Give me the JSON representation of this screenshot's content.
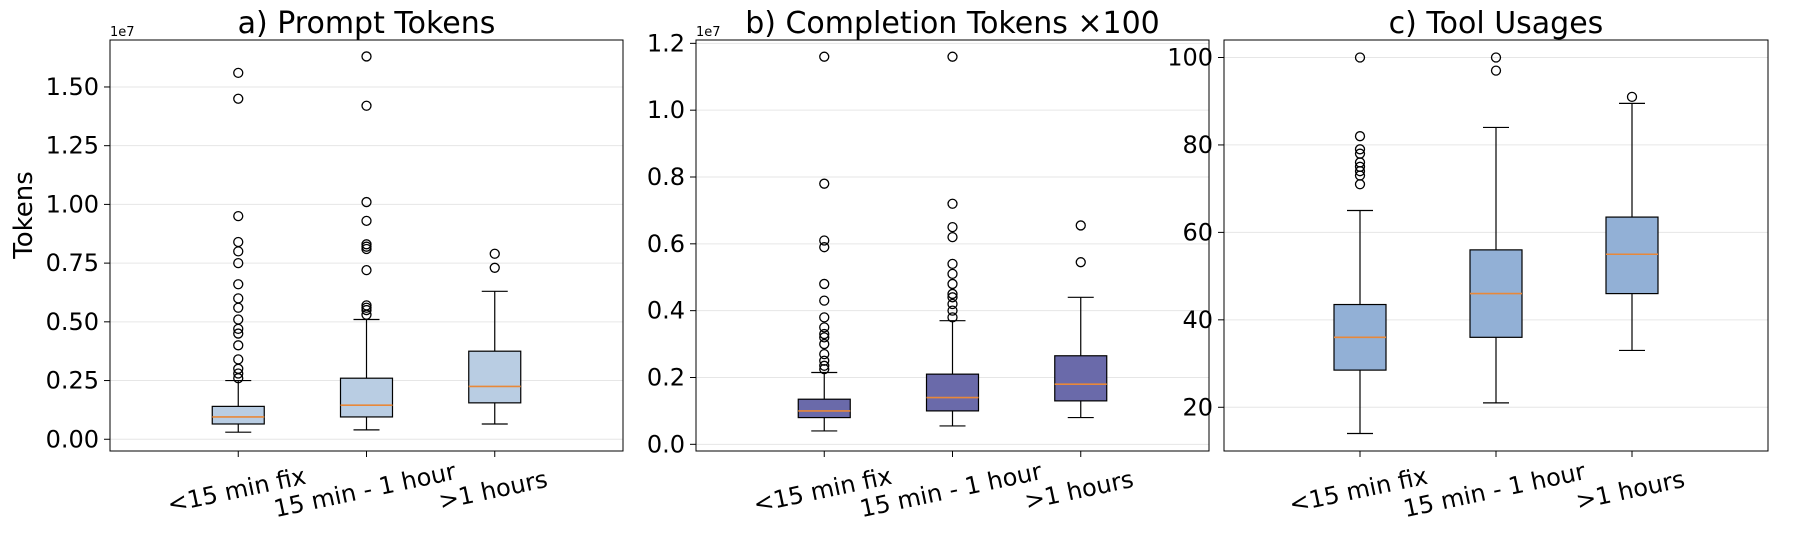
{
  "median_color": "#e8883a",
  "ylabel": "Tokens",
  "chart_data": [
    {
      "type": "box",
      "title": "a) Prompt Tokens",
      "ylabel": "Tokens",
      "multiplier": "1e7",
      "box_color": "#b9cde3",
      "categories": [
        "<15 min fix",
        "15 min - 1 hour",
        ">1 hours"
      ],
      "ylim": [
        -0.05,
        1.7
      ],
      "yticks": [
        0.0,
        0.25,
        0.5,
        0.75,
        1.0,
        1.25,
        1.5
      ],
      "ytick_labels": [
        "0.00",
        "0.25",
        "0.50",
        "0.75",
        "1.00",
        "1.25",
        "1.50"
      ],
      "boxes": [
        {
          "whislo": 0.03,
          "q1": 0.065,
          "med": 0.095,
          "q3": 0.14,
          "whishi": 0.25,
          "fliers": [
            0.26,
            0.28,
            0.3,
            0.34,
            0.4,
            0.45,
            0.47,
            0.51,
            0.56,
            0.6,
            0.66,
            0.75,
            0.8,
            0.84,
            0.95,
            1.45,
            1.56
          ]
        },
        {
          "whislo": 0.04,
          "q1": 0.095,
          "med": 0.145,
          "q3": 0.26,
          "whishi": 0.51,
          "fliers": [
            0.53,
            0.55,
            0.56,
            0.57,
            0.72,
            0.81,
            0.82,
            0.83,
            0.93,
            1.01,
            1.42,
            1.63
          ]
        },
        {
          "whislo": 0.065,
          "q1": 0.155,
          "med": 0.225,
          "q3": 0.375,
          "whishi": 0.63,
          "fliers": [
            0.73,
            0.79
          ]
        }
      ]
    },
    {
      "type": "box",
      "title": "b) Completion Tokens ×100",
      "ylabel": "",
      "multiplier": "1e7",
      "box_color": "#6a6aaa",
      "categories": [
        "<15 min fix",
        "15 min - 1 hour",
        ">1 hours"
      ],
      "ylim": [
        -0.02,
        1.21
      ],
      "yticks": [
        0.0,
        0.2,
        0.4,
        0.6,
        0.8,
        1.0,
        1.2
      ],
      "ytick_labels": [
        "0.0",
        "0.2",
        "0.4",
        "0.6",
        "0.8",
        "1.0",
        "1.2"
      ],
      "boxes": [
        {
          "whislo": 0.04,
          "q1": 0.08,
          "med": 0.1,
          "q3": 0.135,
          "whishi": 0.215,
          "fliers": [
            0.225,
            0.235,
            0.25,
            0.27,
            0.3,
            0.32,
            0.33,
            0.35,
            0.38,
            0.43,
            0.48,
            0.59,
            0.61,
            0.78,
            1.16
          ]
        },
        {
          "whislo": 0.055,
          "q1": 0.1,
          "med": 0.14,
          "q3": 0.21,
          "whishi": 0.37,
          "fliers": [
            0.38,
            0.4,
            0.42,
            0.44,
            0.45,
            0.48,
            0.51,
            0.54,
            0.62,
            0.65,
            0.72,
            1.16
          ]
        },
        {
          "whislo": 0.08,
          "q1": 0.13,
          "med": 0.18,
          "q3": 0.265,
          "whishi": 0.44,
          "fliers": [
            0.545,
            0.655
          ]
        }
      ]
    },
    {
      "type": "box",
      "title": "c) Tool Usages",
      "ylabel": "",
      "multiplier": "",
      "box_color": "#92b0d6",
      "categories": [
        "<15 min fix",
        "15 min - 1 hour",
        ">1 hours"
      ],
      "ylim": [
        10,
        104
      ],
      "yticks": [
        20,
        40,
        60,
        80,
        100
      ],
      "ytick_labels": [
        "20",
        "40",
        "60",
        "80",
        "100"
      ],
      "boxes": [
        {
          "whislo": 14,
          "q1": 28.5,
          "med": 36,
          "q3": 43.5,
          "whishi": 65,
          "fliers": [
            71,
            73,
            74,
            75,
            76,
            78,
            79,
            82,
            100
          ]
        },
        {
          "whislo": 21,
          "q1": 36,
          "med": 46,
          "q3": 56,
          "whishi": 84,
          "fliers": [
            97,
            100
          ]
        },
        {
          "whislo": 33,
          "q1": 46,
          "med": 55,
          "q3": 63.5,
          "whishi": 89.5,
          "fliers": [
            91
          ]
        }
      ]
    }
  ]
}
